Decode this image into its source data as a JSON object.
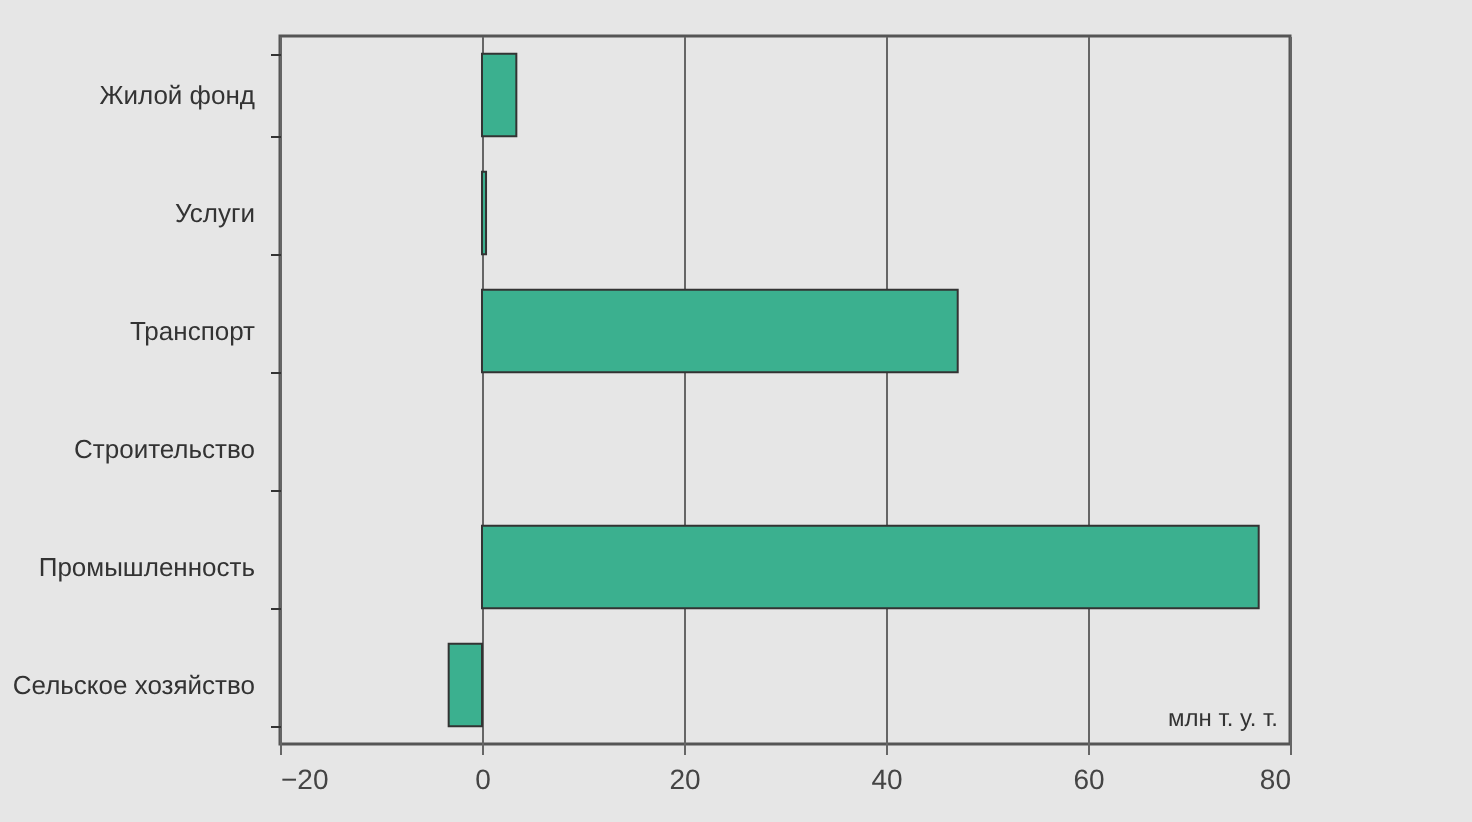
{
  "chart_data": {
    "type": "bar",
    "orientation": "horizontal",
    "categories": [
      "Жилой фонд",
      "Услуги",
      "Транспорт",
      "Строительство",
      "Промышленность",
      "Сельское хозяйство"
    ],
    "series": [
      {
        "color": "#3bb08f",
        "values": [
          3.4,
          0.4,
          47.1,
          null,
          76.9,
          -3.3
        ]
      }
    ],
    "xlim": [
      -20,
      80
    ],
    "xticks": [
      -20,
      0,
      20,
      40,
      60,
      80
    ],
    "grid": "x",
    "annotations": [
      "млн т. у. т."
    ]
  }
}
